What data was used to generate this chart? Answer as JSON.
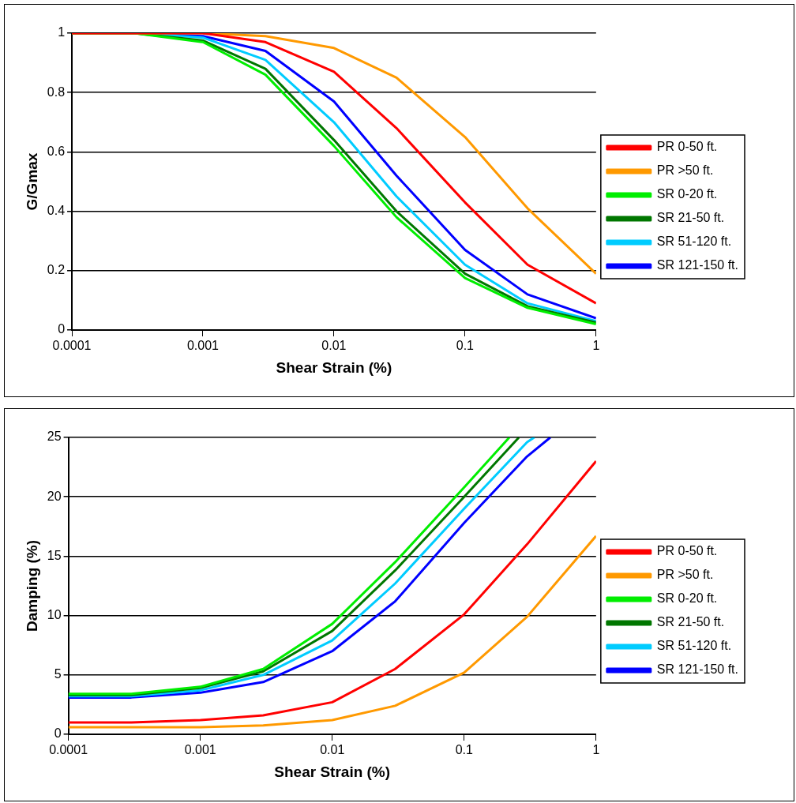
{
  "chart_data": [
    {
      "type": "line",
      "xlabel": "Shear Strain (%)",
      "ylabel": "G/Gmax",
      "log": "x",
      "grid": "y",
      "legend": "right",
      "marker": "none",
      "line_style": "solid",
      "x": [
        0.0001,
        0.0003,
        0.001,
        0.003,
        0.01,
        0.03,
        0.1,
        0.3,
        1
      ],
      "xlim": [
        0.0001,
        1
      ],
      "xticks": [
        0.0001,
        0.001,
        0.01,
        0.1,
        1
      ],
      "ylim": [
        0,
        1
      ],
      "yticks": [
        0,
        0.2,
        0.4,
        0.6,
        0.8,
        1
      ],
      "series": [
        {
          "name": "PR 0-50 ft.",
          "color": "#ff0000",
          "values": [
            1,
            1,
            1,
            0.97,
            0.87,
            0.68,
            0.43,
            0.22,
            0.09
          ]
        },
        {
          "name": "PR >50 ft.",
          "color": "#ff9900",
          "values": [
            1,
            1,
            1,
            0.99,
            0.95,
            0.85,
            0.65,
            0.41,
            0.19
          ]
        },
        {
          "name": "SR 0-20 ft.",
          "color": "#00ee00",
          "values": [
            1,
            1,
            0.97,
            0.86,
            0.62,
            0.38,
            0.175,
            0.075,
            0.02
          ]
        },
        {
          "name": "SR 21-50 ft.",
          "color": "#007700",
          "values": [
            1,
            1,
            0.975,
            0.88,
            0.64,
            0.4,
            0.19,
            0.08,
            0.025
          ]
        },
        {
          "name": "SR 51-120 ft.",
          "color": "#00ccff",
          "values": [
            1,
            1,
            0.985,
            0.91,
            0.7,
            0.45,
            0.22,
            0.09,
            0.03
          ]
        },
        {
          "name": "SR 121-150 ft.",
          "color": "#0000ff",
          "values": [
            1,
            1,
            0.99,
            0.94,
            0.77,
            0.52,
            0.27,
            0.12,
            0.04
          ]
        }
      ]
    },
    {
      "type": "line",
      "xlabel": "Shear Strain (%)",
      "ylabel": "Damping (%)",
      "log": "x",
      "grid": "y",
      "legend": "right",
      "marker": "none",
      "line_style": "solid",
      "x": [
        0.0001,
        0.0003,
        0.001,
        0.003,
        0.01,
        0.03,
        0.1,
        0.3,
        1
      ],
      "xlim": [
        0.0001,
        1
      ],
      "xticks": [
        0.0001,
        0.001,
        0.01,
        0.1,
        1
      ],
      "ylim": [
        0,
        25
      ],
      "yticks": [
        0,
        5,
        10,
        15,
        20,
        25
      ],
      "series": [
        {
          "name": "PR 0-50 ft.",
          "color": "#ff0000",
          "values": [
            1,
            1,
            1.2,
            1.6,
            2.7,
            5.5,
            10.1,
            16,
            23
          ]
        },
        {
          "name": "PR >50 ft.",
          "color": "#ff9900",
          "values": [
            0.6,
            0.6,
            0.6,
            0.75,
            1.2,
            2.4,
            5.2,
            9.9,
            16.7
          ]
        },
        {
          "name": "SR 0-20 ft.",
          "color": "#00ee00",
          "x": [
            0.0001,
            0.0003,
            0.001,
            0.003,
            0.01,
            0.03,
            0.1,
            0.22
          ],
          "values": [
            3.4,
            3.4,
            4,
            5.5,
            9.3,
            14.5,
            20.8,
            25
          ]
        },
        {
          "name": "SR 21-50 ft.",
          "color": "#007700",
          "x": [
            0.0001,
            0.0003,
            0.001,
            0.003,
            0.01,
            0.03,
            0.1,
            0.26
          ],
          "values": [
            3.3,
            3.3,
            3.9,
            5.3,
            8.7,
            13.8,
            20,
            25
          ]
        },
        {
          "name": "SR 51-120 ft.",
          "color": "#00ccff",
          "x": [
            0.0001,
            0.0003,
            0.001,
            0.003,
            0.01,
            0.03,
            0.1,
            0.3,
            0.34
          ],
          "values": [
            3.2,
            3.2,
            3.7,
            5,
            7.9,
            12.7,
            19,
            24.6,
            25
          ]
        },
        {
          "name": "SR 121-150 ft.",
          "color": "#0000ff",
          "x": [
            0.0001,
            0.0003,
            0.001,
            0.003,
            0.01,
            0.03,
            0.1,
            0.3,
            0.45
          ],
          "values": [
            3.1,
            3.1,
            3.5,
            4.4,
            7,
            11.2,
            17.8,
            23.4,
            25
          ]
        }
      ]
    }
  ]
}
